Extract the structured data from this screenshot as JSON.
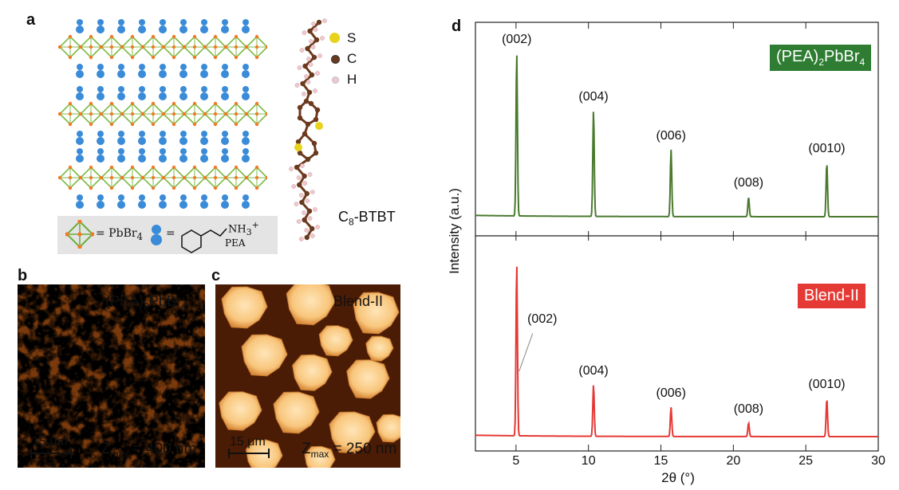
{
  "panels": {
    "a": "a",
    "b": "b",
    "c": "c",
    "d": "d"
  },
  "structure": {
    "legend_pbbr4": "= PbBr",
    "legend_pbbr4_sub": "4",
    "legend_pea": "PEA",
    "legend_nh3": "NH",
    "legend_nh3_sub": "3",
    "legend_nh3_sup": "+",
    "atoms": [
      {
        "symbol": "S",
        "color": "#e8d21c"
      },
      {
        "symbol": "C",
        "color": "#6b3a1e"
      },
      {
        "symbol": "H",
        "color": "#f2c8cc"
      }
    ],
    "molecule_c": "C",
    "molecule_sub": "8",
    "molecule_rest": "-BTBT"
  },
  "afm": {
    "b": {
      "title_pre": "(PEA)",
      "title_sub1": "2",
      "title_mid": "PbBr",
      "title_sub2": "4",
      "scale": "15 μm",
      "z_pre": "Z",
      "z_sub": "max",
      "z_val": " = 400 nm"
    },
    "c": {
      "title": "Blend-II",
      "scale": "15 μm",
      "z_pre": "Z",
      "z_sub": "max",
      "z_val": " = 250 nm"
    }
  },
  "chart_data": {
    "type": "line",
    "xlabel": "2θ (°)",
    "ylabel": "Intensity (a.u.)",
    "xlim": [
      2.2,
      30
    ],
    "x_ticks": [
      5,
      10,
      15,
      20,
      25,
      30
    ],
    "series": [
      {
        "name": "(PEA)2PbBr4",
        "color": "#4a7a2e",
        "tag_color": "#2e7d32",
        "peaks": [
          {
            "label": "(002)",
            "x": 5.05,
            "y": 1.0
          },
          {
            "label": "(004)",
            "x": 10.35,
            "y": 0.65
          },
          {
            "label": "(006)",
            "x": 15.7,
            "y": 0.41
          },
          {
            "label": "(008)",
            "x": 21.05,
            "y": 0.12
          },
          {
            "label": "(0010)",
            "x": 26.45,
            "y": 0.33
          }
        ]
      },
      {
        "name": "Blend-II",
        "color": "#e53935",
        "tag_color": "#e53935",
        "peaks": [
          {
            "label": "(002)",
            "x": 5.05,
            "y": 1.0
          },
          {
            "label": "(004)",
            "x": 10.35,
            "y": 0.3
          },
          {
            "label": "(006)",
            "x": 15.7,
            "y": 0.17
          },
          {
            "label": "(008)",
            "x": 21.05,
            "y": 0.08
          },
          {
            "label": "(0010)",
            "x": 26.45,
            "y": 0.22
          }
        ]
      }
    ],
    "tag_pre": "(PEA)",
    "tag_sub1": "2",
    "tag_mid": "PbBr",
    "tag_sub2": "4",
    "tag_blend": "Blend-II"
  }
}
